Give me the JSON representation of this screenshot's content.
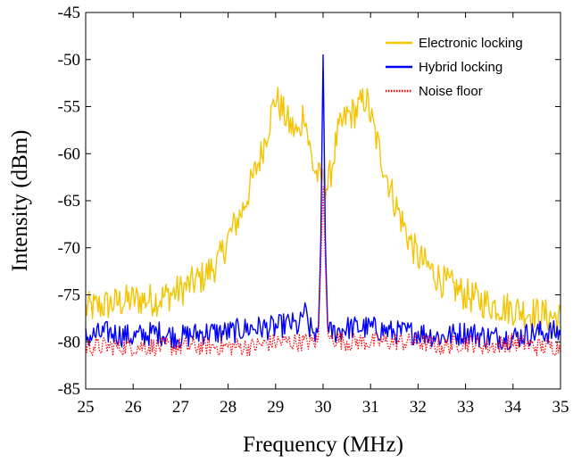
{
  "chart_data": {
    "type": "line",
    "xlabel": "Frequency (MHz)",
    "ylabel": "Intensity (dBm)",
    "xlim": [
      25,
      35
    ],
    "ylim": [
      -85,
      -45
    ],
    "xticks": [
      "25",
      "26",
      "27",
      "28",
      "29",
      "30",
      "31",
      "32",
      "33",
      "34",
      "35"
    ],
    "yticks": [
      "-45",
      "-50",
      "-55",
      "-60",
      "-65",
      "-70",
      "-75",
      "-80",
      "-85"
    ],
    "grid": false,
    "legend_position": "top-right",
    "series": [
      {
        "name": "Electronic locking",
        "color": "#f5c400",
        "style": "solid",
        "x": [
          25.0,
          25.5,
          26.0,
          26.5,
          27.0,
          27.5,
          27.8,
          28.0,
          28.3,
          28.5,
          28.7,
          28.9,
          29.0,
          29.1,
          29.3,
          29.5,
          29.6,
          29.7,
          29.8,
          29.9,
          30.0,
          30.1,
          30.2,
          30.3,
          30.5,
          30.7,
          30.9,
          31.0,
          31.2,
          31.5,
          31.8,
          32.0,
          32.5,
          33.0,
          33.5,
          34.0,
          34.5,
          35.0
        ],
        "y": [
          -76.5,
          -76.0,
          -75.5,
          -75.5,
          -74.5,
          -73.0,
          -71.5,
          -69.0,
          -66.0,
          -63.0,
          -60.0,
          -56.0,
          -54.0,
          -55.0,
          -57.0,
          -58.0,
          -55.0,
          -59.0,
          -61.5,
          -62.5,
          -63.0,
          -63.5,
          -61.0,
          -58.0,
          -56.0,
          -55.5,
          -54.0,
          -56.0,
          -60.0,
          -65.0,
          -69.0,
          -71.0,
          -73.5,
          -75.0,
          -76.0,
          -76.5,
          -77.0,
          -77.5
        ]
      },
      {
        "name": "Hybrid locking",
        "color": "#0000ff",
        "style": "solid",
        "x": [
          25.0,
          25.5,
          26.0,
          26.5,
          27.0,
          27.5,
          28.0,
          28.5,
          29.0,
          29.3,
          29.5,
          29.6,
          29.7,
          29.8,
          29.9,
          29.95,
          30.0,
          30.05,
          30.1,
          30.2,
          30.5,
          31.0,
          31.5,
          32.0,
          32.5,
          33.0,
          33.5,
          34.0,
          34.5,
          35.0
        ],
        "y": [
          -79.5,
          -79.0,
          -79.5,
          -79.0,
          -79.5,
          -79.0,
          -79.0,
          -78.5,
          -78.5,
          -78.0,
          -78.5,
          -76.5,
          -78.5,
          -79.0,
          -79.0,
          -70.0,
          -49.5,
          -70.0,
          -79.0,
          -79.0,
          -78.5,
          -78.5,
          -79.0,
          -79.0,
          -79.5,
          -79.0,
          -79.5,
          -79.5,
          -79.0,
          -79.0
        ]
      },
      {
        "name": "Noise floor",
        "color": "#ff0000",
        "style": "dotted",
        "x": [
          25.0,
          25.5,
          26.0,
          26.5,
          27.0,
          27.5,
          28.0,
          28.5,
          29.0,
          29.5,
          29.9,
          29.95,
          30.0,
          30.05,
          30.1,
          30.5,
          31.0,
          31.5,
          32.0,
          32.5,
          33.0,
          33.5,
          34.0,
          34.5,
          35.0
        ],
        "y": [
          -80.5,
          -80.5,
          -80.5,
          -80.5,
          -80.5,
          -80.5,
          -80.5,
          -80.5,
          -80.0,
          -80.0,
          -80.0,
          -72.0,
          -63.5,
          -72.0,
          -79.5,
          -80.0,
          -80.0,
          -80.0,
          -80.0,
          -80.5,
          -80.0,
          -80.5,
          -80.0,
          -80.5,
          -80.5
        ]
      }
    ]
  }
}
